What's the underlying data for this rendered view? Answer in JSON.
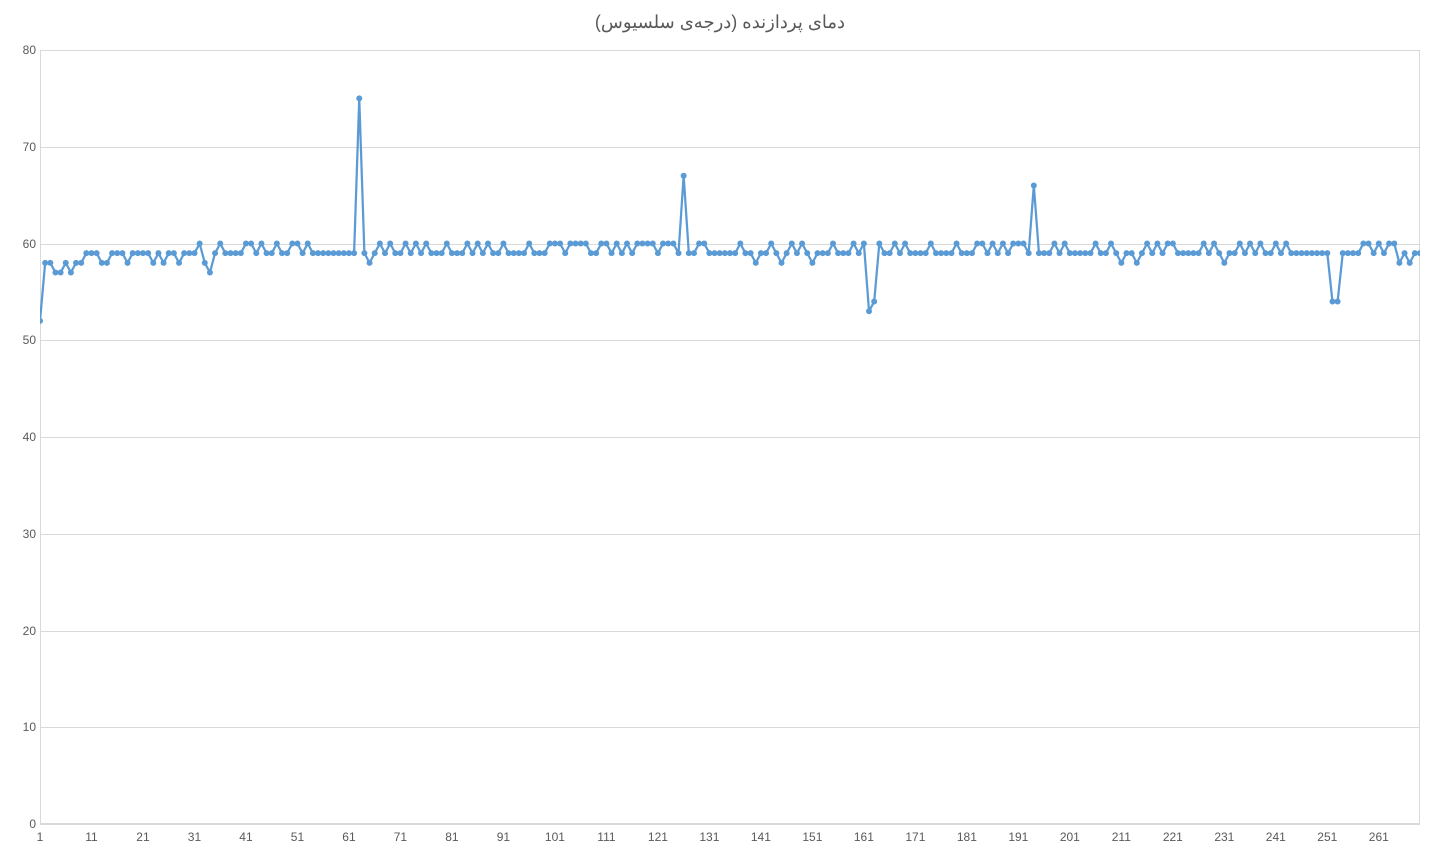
{
  "chart": {
    "type": "line",
    "title": "دمای پردازنده (درجه‌ی سلسیوس)",
    "title_fontsize": 18,
    "title_color": "#595959",
    "background_color": "#ffffff",
    "plot_border_color": "#d9d9d9",
    "grid_color": "#d9d9d9",
    "line_color": "#5b9bd5",
    "marker_color": "#5b9bd5",
    "line_width": 2.25,
    "marker_radius": 3,
    "axis_label_color": "#595959",
    "axis_label_fontsize": 12,
    "ylim": [
      0,
      80
    ],
    "yticks": [
      0,
      10,
      20,
      30,
      40,
      50,
      60,
      70,
      80
    ],
    "xlim": [
      1,
      269
    ],
    "xtick_start": 1,
    "xtick_step": 10,
    "xtick_end": 261,
    "values": [
      52,
      58,
      58,
      57,
      57,
      58,
      57,
      58,
      58,
      59,
      59,
      59,
      58,
      58,
      59,
      59,
      59,
      58,
      59,
      59,
      59,
      59,
      58,
      59,
      58,
      59,
      59,
      58,
      59,
      59,
      59,
      60,
      58,
      57,
      59,
      60,
      59,
      59,
      59,
      59,
      60,
      60,
      59,
      60,
      59,
      59,
      60,
      59,
      59,
      60,
      60,
      59,
      60,
      59,
      59,
      59,
      59,
      59,
      59,
      59,
      59,
      59,
      75,
      59,
      58,
      59,
      60,
      59,
      60,
      59,
      59,
      60,
      59,
      60,
      59,
      60,
      59,
      59,
      59,
      60,
      59,
      59,
      59,
      60,
      59,
      60,
      59,
      60,
      59,
      59,
      60,
      59,
      59,
      59,
      59,
      60,
      59,
      59,
      59,
      60,
      60,
      60,
      59,
      60,
      60,
      60,
      60,
      59,
      59,
      60,
      60,
      59,
      60,
      59,
      60,
      59,
      60,
      60,
      60,
      60,
      59,
      60,
      60,
      60,
      59,
      67,
      59,
      59,
      60,
      60,
      59,
      59,
      59,
      59,
      59,
      59,
      60,
      59,
      59,
      58,
      59,
      59,
      60,
      59,
      58,
      59,
      60,
      59,
      60,
      59,
      58,
      59,
      59,
      59,
      60,
      59,
      59,
      59,
      60,
      59,
      60,
      53,
      54,
      60,
      59,
      59,
      60,
      59,
      60,
      59,
      59,
      59,
      59,
      60,
      59,
      59,
      59,
      59,
      60,
      59,
      59,
      59,
      60,
      60,
      59,
      60,
      59,
      60,
      59,
      60,
      60,
      60,
      59,
      66,
      59,
      59,
      59,
      60,
      59,
      60,
      59,
      59,
      59,
      59,
      59,
      60,
      59,
      59,
      60,
      59,
      58,
      59,
      59,
      58,
      59,
      60,
      59,
      60,
      59,
      60,
      60,
      59,
      59,
      59,
      59,
      59,
      60,
      59,
      60,
      59,
      58,
      59,
      59,
      60,
      59,
      60,
      59,
      60,
      59,
      59,
      60,
      59,
      60,
      59,
      59,
      59,
      59,
      59,
      59,
      59,
      59,
      54,
      54,
      59,
      59,
      59,
      59,
      60,
      60,
      59,
      60,
      59,
      60,
      60,
      58,
      59,
      58,
      59,
      59
    ]
  }
}
